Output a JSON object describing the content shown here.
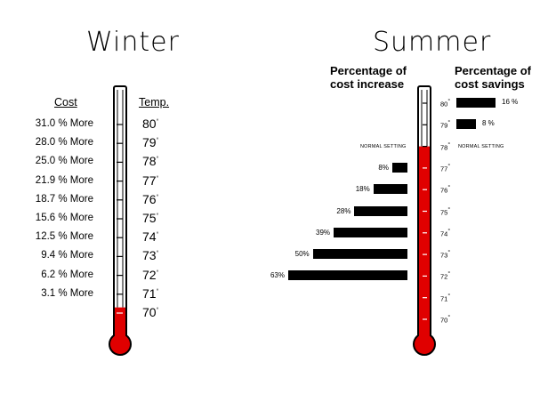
{
  "winter": {
    "title": "Winter",
    "cost_header": "Cost",
    "temp_header": "Temp.",
    "degree_symbol": "°",
    "rows": [
      {
        "cost": "31.0 % More",
        "temp": "80"
      },
      {
        "cost": "28.0 % More",
        "temp": "79"
      },
      {
        "cost": "25.0 % More",
        "temp": "78"
      },
      {
        "cost": "21.9 % More",
        "temp": "77"
      },
      {
        "cost": "18.7 % More",
        "temp": "76"
      },
      {
        "cost": "15.6 % More",
        "temp": "75"
      },
      {
        "cost": "12.5 % More",
        "temp": "74"
      },
      {
        "cost": "9.4 % More",
        "temp": "73"
      },
      {
        "cost": "6.2 % More",
        "temp": "72"
      },
      {
        "cost": "3.1 % More",
        "temp": "71"
      },
      {
        "cost": "",
        "temp": "70"
      }
    ],
    "mercury_level_temp": 70.3
  },
  "summer": {
    "title": "Summer",
    "increase_header": "Percentage of cost increase",
    "savings_header": "Percentage of cost savings",
    "normal_setting_label": "NORMAL SETTING",
    "normal_setting_temp": 78,
    "degree_symbol": "°",
    "temps": [
      "80",
      "79",
      "78",
      "77",
      "76",
      "75",
      "74",
      "73",
      "72",
      "71",
      "70"
    ],
    "mercury_level_temp": 78,
    "savings": [
      {
        "temp": "80",
        "label": "16 %",
        "value": 16
      },
      {
        "temp": "79",
        "label": "8 %",
        "value": 8
      }
    ],
    "increase": [
      {
        "temp": "77",
        "label": "8%",
        "value": 8
      },
      {
        "temp": "76",
        "label": "18%",
        "value": 18
      },
      {
        "temp": "75",
        "label": "28%",
        "value": 28
      },
      {
        "temp": "74",
        "label": "39%",
        "value": 39
      },
      {
        "temp": "73",
        "label": "50%",
        "value": 50
      },
      {
        "temp": "72",
        "label": "63%",
        "value": 63
      }
    ]
  },
  "colors": {
    "mercury": "#e00000",
    "outline": "#000000",
    "bar": "#000000"
  }
}
